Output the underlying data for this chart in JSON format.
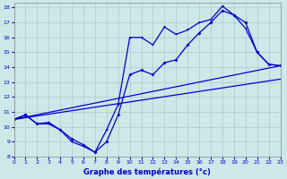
{
  "title": "Graphe des températures (°c)",
  "bg_color": "#cce8e8",
  "line_color": "#0000cc",
  "xlim": [
    0,
    23
  ],
  "ylim": [
    8,
    18.3
  ],
  "xticks": [
    0,
    1,
    2,
    3,
    4,
    5,
    6,
    7,
    8,
    9,
    10,
    11,
    12,
    13,
    14,
    15,
    16,
    17,
    18,
    19,
    20,
    21,
    22,
    23
  ],
  "yticks": [
    8,
    9,
    10,
    11,
    12,
    13,
    14,
    15,
    16,
    17,
    18
  ],
  "series1_x": [
    0,
    1,
    2,
    3,
    4,
    5,
    6,
    7,
    8,
    9,
    10,
    11,
    12,
    13,
    14,
    15,
    16,
    17,
    18,
    19,
    20,
    21,
    22,
    23
  ],
  "series1_y": [
    10.5,
    10.8,
    10.2,
    10.2,
    9.8,
    9.0,
    8.7,
    8.3,
    9.8,
    11.5,
    16.0,
    16.0,
    15.5,
    16.7,
    16.2,
    16.5,
    17.0,
    17.2,
    18.1,
    17.5,
    16.6,
    15.0,
    14.2,
    14.1
  ],
  "series2_x": [
    0,
    1,
    2,
    3,
    4,
    5,
    6,
    7,
    8,
    9,
    10,
    11,
    12,
    13,
    14,
    15,
    16,
    17,
    18,
    19,
    20,
    21,
    22,
    23
  ],
  "series2_y": [
    10.5,
    10.8,
    10.2,
    10.3,
    9.8,
    9.2,
    8.8,
    8.3,
    9.0,
    10.8,
    13.5,
    13.8,
    13.5,
    14.3,
    14.5,
    15.5,
    16.3,
    17.0,
    17.8,
    17.5,
    17.0,
    15.0,
    14.2,
    14.1
  ],
  "trend1_x": [
    0,
    23
  ],
  "trend1_y": [
    10.5,
    13.2
  ],
  "trend2_x": [
    0,
    23
  ],
  "trend2_y": [
    10.5,
    14.1
  ]
}
